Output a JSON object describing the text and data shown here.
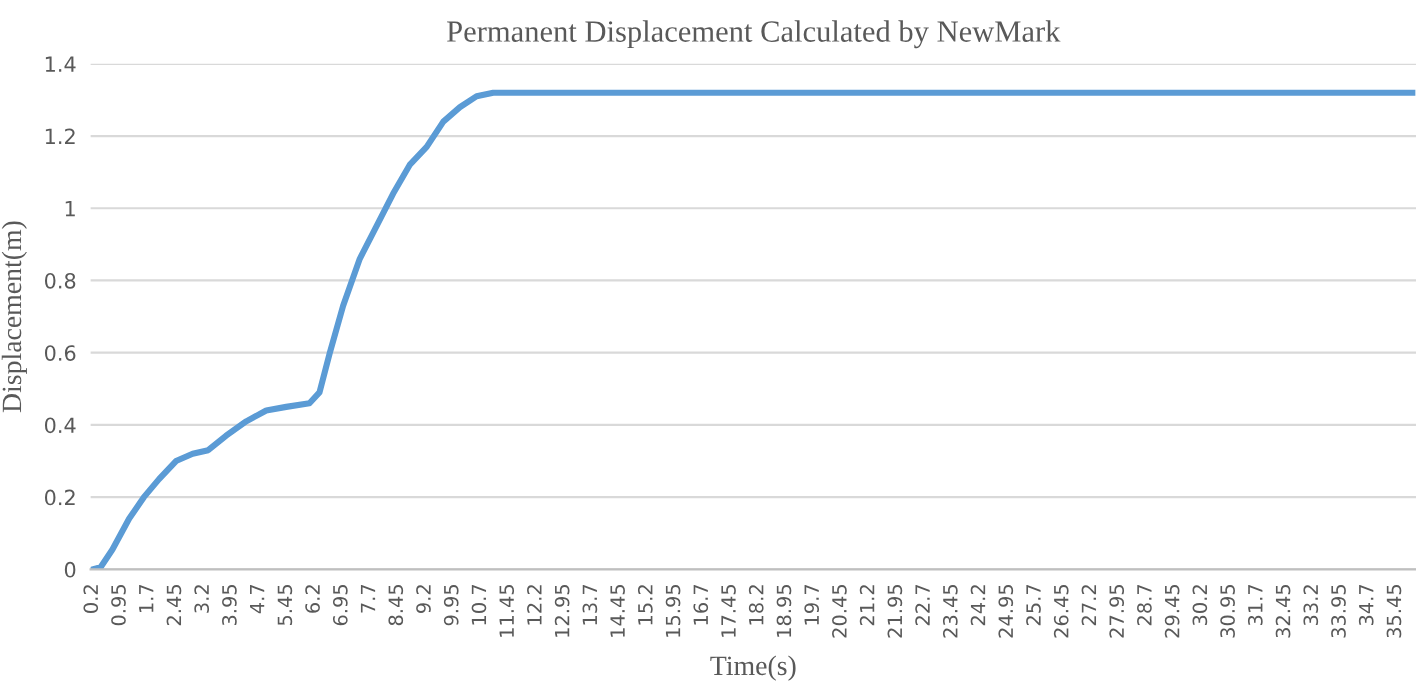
{
  "chart_data": {
    "type": "line",
    "title": "Permanent Displacement Calculated by NewMark",
    "xlabel": "Time(s)",
    "ylabel": "Displacement(m)",
    "x": [
      0.2,
      0.42,
      0.74,
      1.19,
      1.59,
      2.0,
      2.46,
      2.91,
      3.33,
      3.81,
      4.36,
      4.9,
      5.44,
      6.07,
      6.34,
      6.62,
      6.98,
      7.43,
      7.88,
      8.33,
      8.78,
      9.24,
      9.69,
      10.14,
      10.59,
      11.04,
      35.9
    ],
    "values": [
      0,
      0.006,
      0.055,
      0.14,
      0.2,
      0.25,
      0.3,
      0.32,
      0.33,
      0.37,
      0.41,
      0.44,
      0.45,
      0.46,
      0.49,
      0.6,
      0.73,
      0.86,
      0.95,
      1.04,
      1.12,
      1.17,
      1.24,
      1.28,
      1.31,
      1.32,
      1.32
    ],
    "color": "#5b9bd5",
    "xlim": [
      0.15,
      36.0
    ],
    "xticks": [
      0.2,
      0.95,
      1.7,
      2.45,
      3.2,
      3.95,
      4.7,
      5.45,
      6.2,
      6.95,
      7.7,
      8.45,
      9.2,
      9.95,
      10.7,
      11.45,
      12.2,
      12.95,
      13.7,
      14.45,
      15.2,
      15.95,
      16.7,
      17.45,
      18.2,
      18.95,
      19.7,
      20.45,
      21.2,
      21.95,
      22.7,
      23.45,
      24.2,
      24.95,
      25.7,
      26.45,
      27.2,
      27.95,
      28.7,
      29.45,
      30.2,
      30.95,
      31.7,
      32.45,
      33.2,
      33.95,
      34.7,
      35.45
    ],
    "ylim": [
      0,
      1.4
    ],
    "yticks": [
      0,
      0.2,
      0.4,
      0.6,
      0.8,
      1,
      1.2,
      1.4
    ],
    "grid": "y",
    "legend": false,
    "marker": "none",
    "line_style": "solid"
  }
}
